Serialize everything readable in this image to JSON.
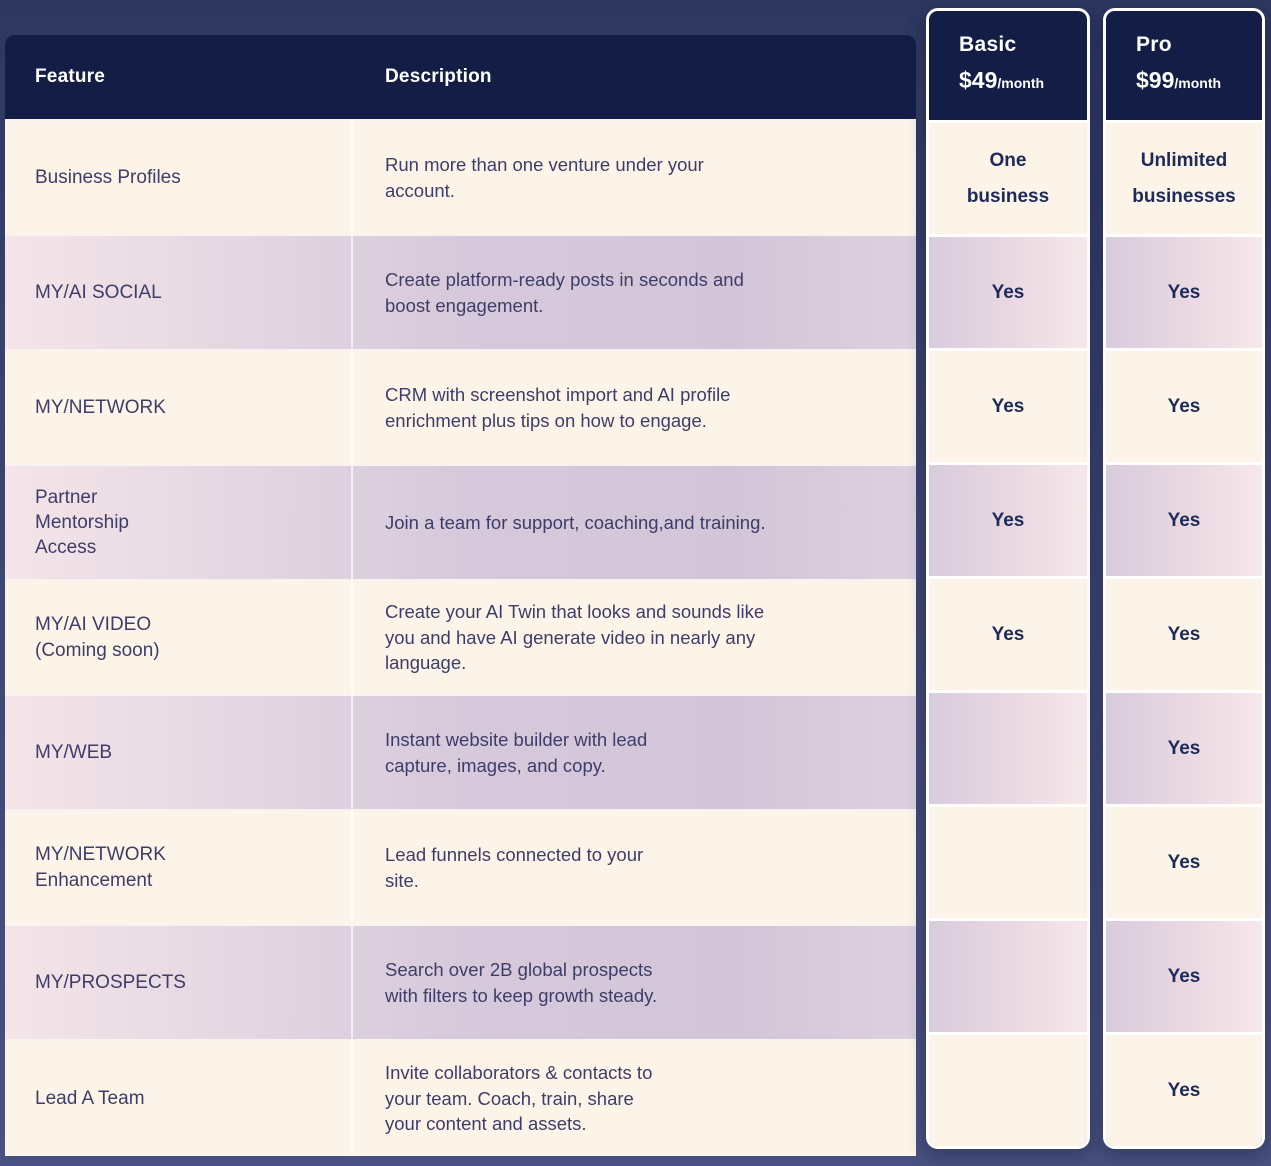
{
  "table": {
    "headers": {
      "feature": "Feature",
      "description": "Description"
    },
    "rows": [
      {
        "feature": "Business Profiles",
        "description": "Run more than one venture under your\naccount.",
        "basic": "One\nbusiness",
        "pro": "Unlimited\nbusinesses"
      },
      {
        "feature": "MY/AI SOCIAL",
        "description": "Create platform-ready posts in seconds and\nboost engagement.",
        "basic": "Yes",
        "pro": "Yes"
      },
      {
        "feature": "MY/NETWORK",
        "description": "CRM with screenshot import and AI profile\nenrichment plus tips on how to engage.",
        "basic": "Yes",
        "pro": "Yes"
      },
      {
        "feature": "Partner\nMentorship\nAccess",
        "description": "Join a team for support, coaching,and training.",
        "basic": "Yes",
        "pro": "Yes"
      },
      {
        "feature": "MY/AI VIDEO\n(Coming soon)",
        "description": "Create your AI Twin that looks and sounds like\nyou and have AI generate video in nearly any\nlanguage.",
        "basic": "Yes",
        "pro": "Yes"
      },
      {
        "feature": "MY/WEB",
        "description": "Instant website builder with lead\ncapture, images, and copy.",
        "basic": "",
        "pro": "Yes"
      },
      {
        "feature": "MY/NETWORK\nEnhancement",
        "description": "Lead funnels connected to your\nsite.",
        "basic": "",
        "pro": "Yes"
      },
      {
        "feature": "MY/PROSPECTS",
        "description": "Search over 2B global prospects\nwith filters to keep growth steady.",
        "basic": "",
        "pro": "Yes"
      },
      {
        "feature": "Lead A Team",
        "description": "Invite collaborators & contacts to\nyour team. Coach, train, share\nyour content and assets.",
        "basic": "",
        "pro": "Yes"
      }
    ]
  },
  "plans": [
    {
      "id": "basic",
      "name": "Basic",
      "price": "$49",
      "period": "/month"
    },
    {
      "id": "pro",
      "name": "Pro",
      "price": "$99",
      "period": "/month"
    }
  ],
  "colors": {
    "page-bg-top": "#2d3760",
    "page-bg-mid": "#39416c",
    "page-bg-bottom": "#4a5180",
    "header-navy": "#141d46",
    "cream": "#fdf4e9",
    "text": "#3e3d68",
    "value-text": "#1e2a58",
    "separator": "#f8f3f0",
    "card-border": "#ffffff"
  }
}
